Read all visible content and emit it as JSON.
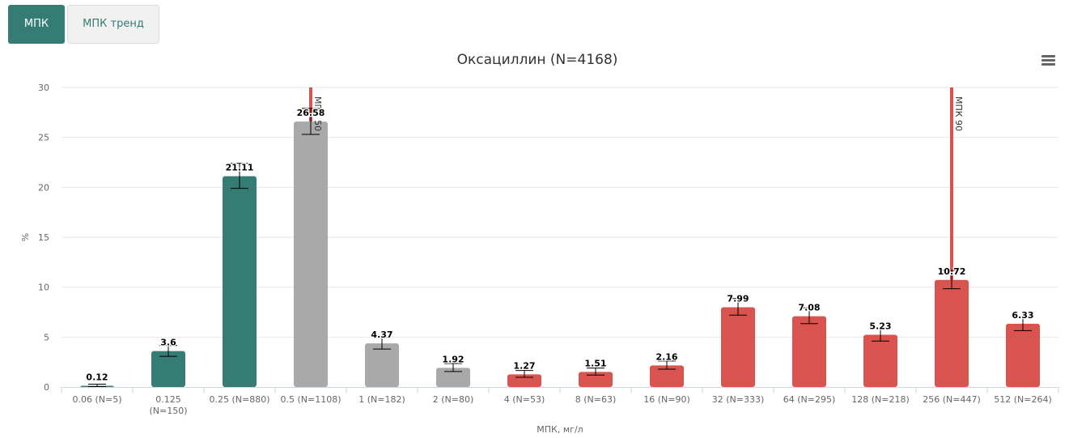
{
  "tabs": [
    {
      "label": "МПК",
      "active": true
    },
    {
      "label": "МПК тренд",
      "active": false
    }
  ],
  "colors": {
    "accent": "#357c74",
    "susceptible": "#357c74",
    "intermediate": "#a9a9a9",
    "resistant": "#d9534f",
    "marker": "#d9534f"
  },
  "menu_icon": "hamburger-menu-icon",
  "chart_data": {
    "type": "bar",
    "title": "Оксациллин (N=4168)",
    "xlabel": "МПК, мг/л",
    "ylabel": "%",
    "ylim": [
      0,
      30
    ],
    "yticks": [
      "0",
      "5",
      "10",
      "15",
      "20",
      "25",
      "30"
    ],
    "grid": true,
    "categories": [
      [
        "0.06 (N=5)"
      ],
      [
        "0.125",
        "(N=150)"
      ],
      [
        "0.25 (N=880)"
      ],
      [
        "0.5 (N=1108)"
      ],
      [
        "1 (N=182)"
      ],
      [
        "2 (N=80)"
      ],
      [
        "4 (N=53)"
      ],
      [
        "8 (N=63)"
      ],
      [
        "16 (N=90)"
      ],
      [
        "32 (N=333)"
      ],
      [
        "64 (N=295)"
      ],
      [
        "128 (N=218)"
      ],
      [
        "256 (N=447)"
      ],
      [
        "512 (N=264)"
      ]
    ],
    "values": [
      0.12,
      3.6,
      21.11,
      26.58,
      4.37,
      1.92,
      1.27,
      1.51,
      2.16,
      7.99,
      7.08,
      5.23,
      10.72,
      6.33
    ],
    "value_labels": [
      "0.12",
      "3.6",
      "21.11",
      "26.58",
      "4.37",
      "1.92",
      "1.27",
      "1.51",
      "2.16",
      "7.99",
      "7.08",
      "5.23",
      "10.72",
      "6.33"
    ],
    "error_low": [
      0.04,
      3.07,
      19.9,
      25.3,
      3.8,
      1.55,
      0.97,
      1.2,
      1.78,
      7.2,
      6.34,
      4.6,
      9.84,
      5.65
    ],
    "error_high": [
      0.28,
      4.16,
      22.4,
      27.9,
      5.0,
      2.35,
      1.65,
      1.9,
      2.6,
      8.86,
      7.93,
      5.93,
      11.69,
      7.1
    ],
    "categories_class": [
      "S",
      "S",
      "S",
      "I",
      "I",
      "I",
      "R",
      "R",
      "R",
      "R",
      "R",
      "R",
      "R",
      "R"
    ],
    "reference_lines": [
      {
        "label": "МПК 50",
        "category_index": 3
      },
      {
        "label": "МПК 90",
        "category_index": 12
      }
    ]
  }
}
